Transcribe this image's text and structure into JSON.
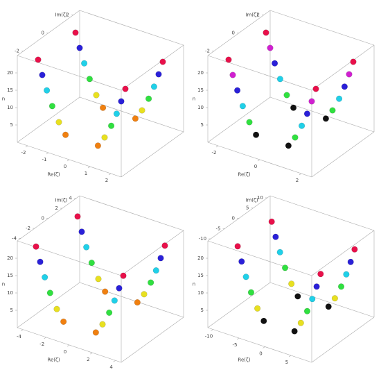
{
  "chart_data": [
    {
      "type": "scatter3d",
      "xlabel": "Re(ζ)",
      "ylabel": "Im(ζ)",
      "zlabel": "n",
      "xlim": [
        -2.5,
        2.5
      ],
      "ylim": [
        -2.5,
        2.5
      ],
      "zlim": [
        0,
        25
      ],
      "xticks": [
        -2,
        -1,
        0,
        1,
        2
      ],
      "yticks": [
        -2,
        0,
        2
      ],
      "zticks": [
        5,
        10,
        15,
        20
      ],
      "series": [
        {
          "color": "#e8104a",
          "x": [
            2.1,
            -2.1,
            2.1,
            -2.1
          ],
          "y": [
            1.5,
            1.5,
            -1.5,
            -1.5
          ],
          "z": [
            22,
            22,
            22,
            22
          ]
        },
        {
          "color": "#2a20d8",
          "x": [
            1.9,
            -1.9,
            1.9,
            -1.9
          ],
          "y": [
            1.5,
            1.5,
            -1.5,
            -1.5
          ],
          "z": [
            18,
            18,
            18,
            18
          ]
        },
        {
          "color": "#20d0e8",
          "x": [
            1.68,
            -1.68,
            1.68,
            -1.68
          ],
          "y": [
            1.5,
            1.5,
            -1.5,
            -1.5
          ],
          "z": [
            14,
            14,
            14,
            14
          ]
        },
        {
          "color": "#30e040",
          "x": [
            1.42,
            -1.42,
            1.42,
            -1.42
          ],
          "y": [
            1.5,
            1.5,
            -1.5,
            -1.5
          ],
          "z": [
            10,
            10,
            10,
            10
          ]
        },
        {
          "color": "#e8e020",
          "x": [
            1.1,
            -1.1,
            1.1,
            -1.1
          ],
          "y": [
            1.5,
            1.5,
            -1.5,
            -1.5
          ],
          "z": [
            6,
            6,
            6,
            6
          ]
        },
        {
          "color": "#f08010",
          "x": [
            0.78,
            -0.78,
            0.78,
            -0.78
          ],
          "y": [
            1.5,
            1.5,
            -1.5,
            -1.5
          ],
          "z": [
            3,
            3,
            3,
            3
          ]
        }
      ]
    },
    {
      "type": "scatter3d",
      "xlabel": "Re(ζ)",
      "ylabel": "Im(ζ)",
      "zlabel": "n",
      "xlim": [
        -2.5,
        2.5
      ],
      "ylim": [
        -2.5,
        2.5
      ],
      "zlim": [
        0,
        25
      ],
      "xticks": [
        -2,
        0,
        2
      ],
      "yticks": [
        -2,
        0,
        2
      ],
      "zticks": [
        5,
        10,
        15,
        20
      ],
      "series": [
        {
          "color": "#e8104a",
          "x": [
            2.1,
            -2.1,
            2.1,
            -2.1
          ],
          "y": [
            1.5,
            1.5,
            -1.5,
            -1.5
          ],
          "z": [
            22,
            22,
            22,
            22
          ]
        },
        {
          "color": "#d020d0",
          "x": [
            1.9,
            -1.9,
            1.9,
            -1.9
          ],
          "y": [
            1.5,
            1.5,
            -1.5,
            -1.5
          ],
          "z": [
            18,
            18,
            18,
            18
          ]
        },
        {
          "color": "#2a20d8",
          "x": [
            1.68,
            -1.68,
            1.68,
            -1.68
          ],
          "y": [
            1.5,
            1.5,
            -1.5,
            -1.5
          ],
          "z": [
            14,
            14,
            14,
            14
          ]
        },
        {
          "color": "#20d0e8",
          "x": [
            1.42,
            -1.42,
            1.42,
            -1.42
          ],
          "y": [
            1.5,
            1.5,
            -1.5,
            -1.5
          ],
          "z": [
            10,
            10,
            10,
            10
          ]
        },
        {
          "color": "#30e040",
          "x": [
            1.1,
            -1.1,
            1.1,
            -1.1
          ],
          "y": [
            1.5,
            1.5,
            -1.5,
            -1.5
          ],
          "z": [
            6,
            6,
            6,
            6
          ]
        },
        {
          "color": "#111111",
          "x": [
            0.78,
            -0.78,
            0.78,
            -0.78
          ],
          "y": [
            1.5,
            1.5,
            -1.5,
            -1.5
          ],
          "z": [
            3,
            3,
            3,
            3
          ]
        }
      ]
    },
    {
      "type": "scatter3d",
      "xlabel": "Re(ζ)",
      "ylabel": "Im(ζ)",
      "zlabel": "n",
      "xlim": [
        -4.5,
        4.5
      ],
      "ylim": [
        -4.5,
        4.5
      ],
      "zlim": [
        0,
        25
      ],
      "xticks": [
        -4,
        -2,
        0,
        2,
        4
      ],
      "yticks": [
        -4,
        -2,
        0,
        2,
        4
      ],
      "zticks": [
        5,
        10,
        15,
        20
      ],
      "series": [
        {
          "color": "#e8104a",
          "x": [
            3.78,
            -3.78,
            3.78,
            -3.78
          ],
          "y": [
            3,
            3,
            -3,
            -3
          ],
          "z": [
            22,
            22,
            22,
            22
          ]
        },
        {
          "color": "#2a20d8",
          "x": [
            3.42,
            -3.42,
            3.42,
            -3.42
          ],
          "y": [
            3,
            3,
            -3,
            -3
          ],
          "z": [
            18,
            18,
            18,
            18
          ]
        },
        {
          "color": "#20d0e8",
          "x": [
            3.02,
            -3.02,
            3.02,
            -3.02
          ],
          "y": [
            3,
            3,
            -3,
            -3
          ],
          "z": [
            14,
            14,
            14,
            14
          ]
        },
        {
          "color": "#30e040",
          "x": [
            2.56,
            -2.56,
            2.56,
            -2.56
          ],
          "y": [
            3,
            3,
            -3,
            -3
          ],
          "z": [
            10,
            10,
            10,
            10
          ]
        },
        {
          "color": "#e8e020",
          "x": [
            1.98,
            -1.98,
            1.98,
            -1.98
          ],
          "y": [
            3,
            3,
            -3,
            -3
          ],
          "z": [
            6,
            6,
            6,
            6
          ]
        },
        {
          "color": "#f08010",
          "x": [
            1.4,
            -1.4,
            1.4,
            -1.4
          ],
          "y": [
            3,
            3,
            -3,
            -3
          ],
          "z": [
            3,
            3,
            3,
            3
          ]
        }
      ]
    },
    {
      "type": "scatter3d",
      "xlabel": "Re(ζ)",
      "ylabel": "Im(ζ)",
      "zlabel": "n",
      "xlim": [
        -11,
        9
      ],
      "ylim": [
        -11,
        11
      ],
      "zlim": [
        0,
        25
      ],
      "xticks": [
        -10,
        -5,
        0,
        5
      ],
      "yticks": [
        -10,
        -5,
        0,
        5,
        10
      ],
      "zticks": [
        5,
        10,
        15,
        20
      ],
      "series": [
        {
          "color": "#e8104a",
          "x": [
            7.98,
            -7.98,
            7.98,
            -7.98
          ],
          "y": [
            6,
            6,
            -6,
            -6
          ],
          "z": [
            22,
            22,
            22,
            22
          ]
        },
        {
          "color": "#2a20d8",
          "x": [
            7.22,
            -7.22,
            7.22,
            -7.22
          ],
          "y": [
            6,
            6,
            -6,
            -6
          ],
          "z": [
            18,
            18,
            18,
            18
          ]
        },
        {
          "color": "#20d0e8",
          "x": [
            6.38,
            -6.38,
            6.38,
            -6.38
          ],
          "y": [
            6,
            6,
            -6,
            -6
          ],
          "z": [
            14,
            14,
            14,
            14
          ]
        },
        {
          "color": "#30e040",
          "x": [
            5.4,
            -5.4,
            5.4,
            -5.4
          ],
          "y": [
            6,
            6,
            -6,
            -6
          ],
          "z": [
            10,
            10,
            10,
            10
          ]
        },
        {
          "color": "#e8e020",
          "x": [
            4.18,
            -4.18,
            4.18,
            -4.18
          ],
          "y": [
            6,
            6,
            -6,
            -6
          ],
          "z": [
            6,
            6,
            6,
            6
          ]
        },
        {
          "color": "#111111",
          "x": [
            2.96,
            -2.96,
            2.96,
            -2.96
          ],
          "y": [
            6,
            6,
            -6,
            -6
          ],
          "z": [
            3,
            3,
            3,
            3
          ]
        }
      ]
    }
  ]
}
